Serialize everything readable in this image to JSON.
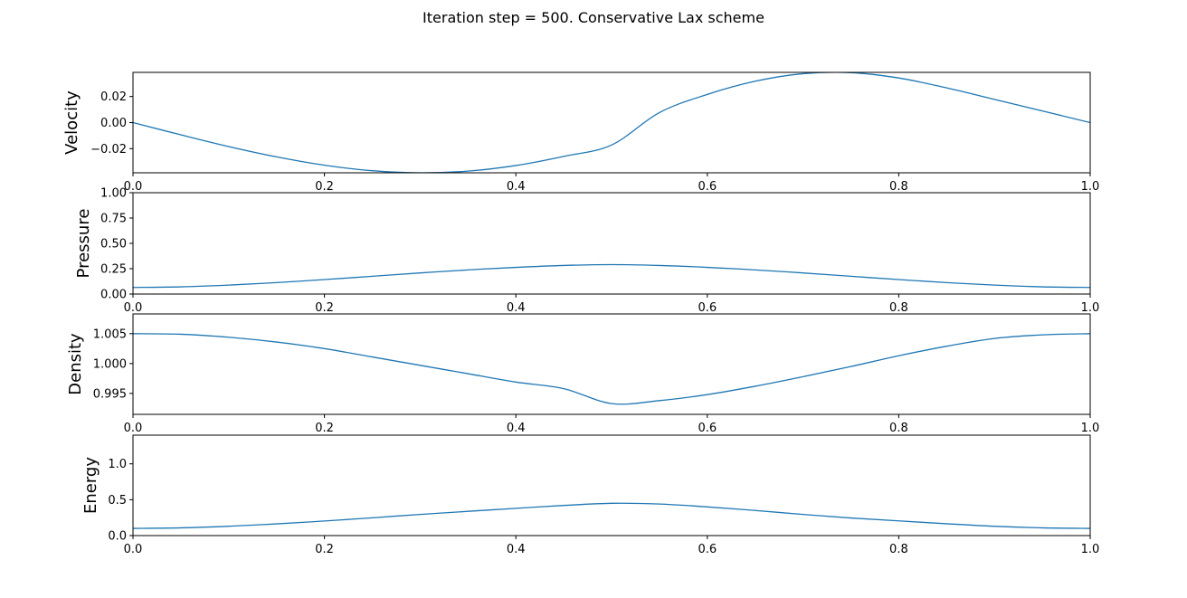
{
  "title": "Iteration step = 500. Conservative Lax scheme",
  "colors": {
    "line": "#1f77b4",
    "axis": "#000000"
  },
  "chart_data": [
    {
      "type": "line",
      "ylabel": "Velocity",
      "xlim": [
        0,
        1
      ],
      "ylim": [
        -0.0385,
        0.0385
      ],
      "xticks": [
        0,
        0.2,
        0.4,
        0.6,
        0.8,
        1.0
      ],
      "xtick_labels": [
        "0.0",
        "0.2",
        "0.4",
        "0.6",
        "0.8",
        "1.0"
      ],
      "yticks": [
        0.02,
        0.0,
        -0.02
      ],
      "ytick_labels": [
        "0.02",
        "0.00",
        "−0.02"
      ],
      "series": [
        {
          "x": [
            0,
            0.05,
            0.1,
            0.15,
            0.2,
            0.25,
            0.3,
            0.35,
            0.4,
            0.45,
            0.5,
            0.55,
            0.6,
            0.65,
            0.7,
            0.75,
            0.8,
            0.85,
            0.9,
            0.95,
            1.0
          ],
          "y": [
            0.0,
            -0.0094,
            -0.0184,
            -0.0263,
            -0.0327,
            -0.0369,
            -0.0385,
            -0.0372,
            -0.0329,
            -0.0259,
            -0.0172,
            0.0077,
            0.0216,
            0.0317,
            0.0375,
            0.0383,
            0.0342,
            0.0266,
            0.0178,
            0.0089,
            0.0
          ]
        }
      ]
    },
    {
      "type": "line",
      "ylabel": "Pressure",
      "xlim": [
        0,
        1
      ],
      "ylim": [
        0,
        1
      ],
      "xticks": [
        0,
        0.2,
        0.4,
        0.6,
        0.8,
        1.0
      ],
      "xtick_labels": [
        "0.0",
        "0.2",
        "0.4",
        "0.6",
        "0.8",
        "1.0"
      ],
      "yticks": [
        0,
        0.25,
        0.5,
        0.75,
        1.0
      ],
      "ytick_labels": [
        "0.00",
        "0.25",
        "0.50",
        "0.75",
        "1.00"
      ],
      "series": [
        {
          "x": [
            0,
            0.05,
            0.1,
            0.15,
            0.2,
            0.25,
            0.3,
            0.35,
            0.4,
            0.45,
            0.5,
            0.55,
            0.6,
            0.65,
            0.7,
            0.75,
            0.8,
            0.85,
            0.9,
            0.95,
            1.0
          ],
          "y": [
            0.065,
            0.071,
            0.088,
            0.113,
            0.143,
            0.175,
            0.208,
            0.238,
            0.263,
            0.282,
            0.29,
            0.282,
            0.263,
            0.238,
            0.208,
            0.175,
            0.143,
            0.113,
            0.088,
            0.071,
            0.065
          ]
        }
      ]
    },
    {
      "type": "line",
      "ylabel": "Density",
      "xlim": [
        0,
        1
      ],
      "ylim": [
        0.9915,
        1.0083
      ],
      "xticks": [
        0,
        0.2,
        0.4,
        0.6,
        0.8,
        1.0
      ],
      "xtick_labels": [
        "0.0",
        "0.2",
        "0.4",
        "0.6",
        "0.8",
        "1.0"
      ],
      "yticks": [
        1.005,
        1.0,
        0.995
      ],
      "ytick_labels": [
        "1.005",
        "1.000",
        "0.995"
      ],
      "series": [
        {
          "x": [
            0,
            0.05,
            0.1,
            0.15,
            0.2,
            0.25,
            0.3,
            0.35,
            0.4,
            0.45,
            0.5,
            0.55,
            0.6,
            0.65,
            0.7,
            0.75,
            0.8,
            0.85,
            0.9,
            0.95,
            1.0
          ],
          "y": [
            1.005,
            1.0049,
            1.0044,
            1.0036,
            1.0025,
            1.0011,
            0.9997,
            0.9983,
            0.9969,
            0.9958,
            0.9933,
            0.9938,
            0.9948,
            0.9962,
            0.9978,
            0.9995,
            1.0013,
            1.0029,
            1.0042,
            1.0048,
            1.005
          ]
        }
      ]
    },
    {
      "type": "line",
      "ylabel": "Energy",
      "xlim": [
        0,
        1
      ],
      "ylim": [
        0,
        1.4
      ],
      "xticks": [
        0,
        0.2,
        0.4,
        0.6,
        0.8,
        1.0
      ],
      "xtick_labels": [
        "0.0",
        "0.2",
        "0.4",
        "0.6",
        "0.8",
        "1.0"
      ],
      "yticks": [
        0,
        0.5,
        1.0
      ],
      "ytick_labels": [
        "0.0",
        "0.5",
        "1.0"
      ],
      "series": [
        {
          "x": [
            0,
            0.05,
            0.1,
            0.15,
            0.2,
            0.25,
            0.3,
            0.35,
            0.4,
            0.45,
            0.5,
            0.55,
            0.6,
            0.65,
            0.7,
            0.75,
            0.8,
            0.85,
            0.9,
            0.95,
            1.0
          ],
          "y": [
            0.1,
            0.108,
            0.13,
            0.163,
            0.203,
            0.248,
            0.295,
            0.338,
            0.38,
            0.42,
            0.45,
            0.44,
            0.4,
            0.35,
            0.295,
            0.245,
            0.205,
            0.165,
            0.13,
            0.108,
            0.1
          ]
        }
      ]
    }
  ]
}
